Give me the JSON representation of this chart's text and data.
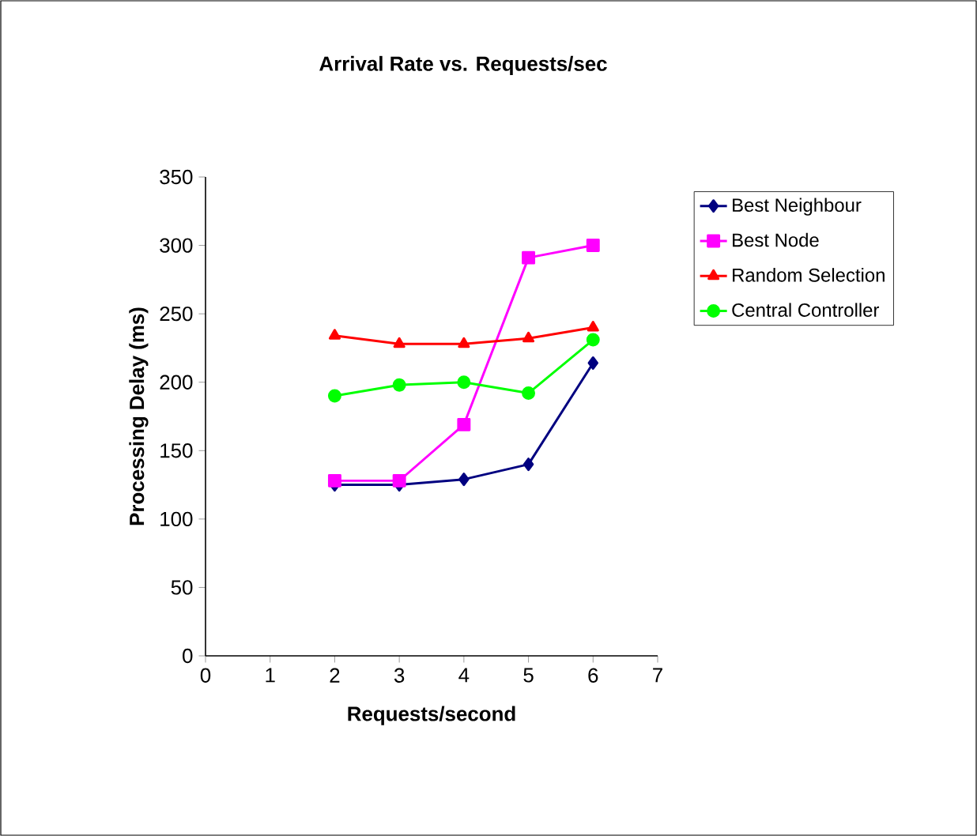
{
  "chart_data": {
    "type": "line",
    "title": "Arrival Rate vs. Requests/sec",
    "xlabel": "Requests/second",
    "ylabel": "Processing Delay (ms)",
    "xlim": [
      0,
      7
    ],
    "xticks": [
      0,
      1,
      2,
      3,
      4,
      5,
      6,
      7
    ],
    "ylim": [
      0,
      350
    ],
    "yticks": [
      0,
      50,
      100,
      150,
      200,
      250,
      300,
      350
    ],
    "grid": false,
    "legend": "right",
    "x": [
      2,
      3,
      4,
      5,
      6
    ],
    "series": [
      {
        "name": "Best Neighbour",
        "color": "#000080",
        "marker": "diamond",
        "values": [
          125,
          125,
          129,
          140,
          214
        ]
      },
      {
        "name": "Best Node",
        "color": "#ff00ff",
        "marker": "square",
        "values": [
          128,
          128,
          169,
          291,
          300
        ]
      },
      {
        "name": "Random Selection",
        "color": "#ff0000",
        "marker": "triangle",
        "values": [
          234,
          228,
          228,
          232,
          240
        ]
      },
      {
        "name": "Central Controller",
        "color": "#00ff00",
        "marker": "circle",
        "values": [
          190,
          198,
          200,
          192,
          231
        ]
      }
    ]
  }
}
